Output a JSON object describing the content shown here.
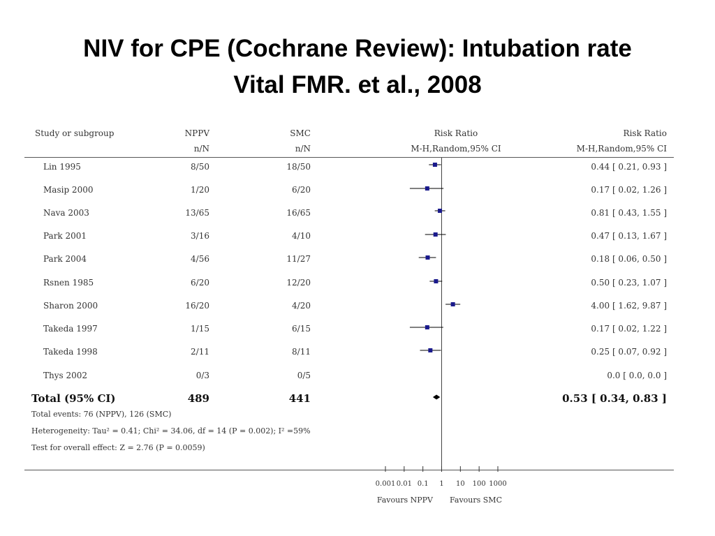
{
  "title": {
    "line1": "NIV for CPE  (Cochrane Review): Intubation rate",
    "line2": "Vital FMR. et al., 2008"
  },
  "header": {
    "study": "Study or subgroup",
    "nppv": "NPPV",
    "smc": "SMC",
    "nppv_sub": "n/N",
    "smc_sub": "n/N",
    "plot": "Risk Ratio",
    "plot_sub": "M-H,Random,95% CI",
    "ratio": "Risk Ratio",
    "ratio_sub": "M-H,Random,95% CI"
  },
  "rows": [
    {
      "study": "Lin 1995",
      "nppv": "8/50",
      "smc": "18/50",
      "ci_text": "0.44 [ 0.21, 0.93 ]"
    },
    {
      "study": "Masip 2000",
      "nppv": "1/20",
      "smc": "6/20",
      "ci_text": "0.17 [ 0.02, 1.26 ]"
    },
    {
      "study": "Nava 2003",
      "nppv": "13/65",
      "smc": "16/65",
      "ci_text": "0.81 [ 0.43, 1.55 ]"
    },
    {
      "study": "Park 2001",
      "nppv": "3/16",
      "smc": "4/10",
      "ci_text": "0.47 [ 0.13, 1.67 ]"
    },
    {
      "study": "Park 2004",
      "nppv": "4/56",
      "smc": "11/27",
      "ci_text": "0.18 [ 0.06, 0.50 ]"
    },
    {
      "study": "Rsnen 1985",
      "nppv": "6/20",
      "smc": "12/20",
      "ci_text": "0.50 [ 0.23, 1.07 ]"
    },
    {
      "study": "Sharon 2000",
      "nppv": "16/20",
      "smc": "4/20",
      "ci_text": "4.00 [ 1.62, 9.87 ]"
    },
    {
      "study": "Takeda 1997",
      "nppv": "1/15",
      "smc": "6/15",
      "ci_text": "0.17 [ 0.02, 1.22 ]"
    },
    {
      "study": "Takeda 1998",
      "nppv": "2/11",
      "smc": "8/11",
      "ci_text": "0.25 [ 0.07, 0.92 ]"
    },
    {
      "study": "Thys 2002",
      "nppv": "0/3",
      "smc": "0/5",
      "ci_text": "0.0 [ 0.0, 0.0 ]"
    }
  ],
  "total": {
    "label": "Total (95% CI)",
    "nppv": "489",
    "smc": "441",
    "ci_text": "0.53 [ 0.34, 0.83 ]"
  },
  "footnotes": {
    "events": "Total events: 76 (NPPV), 126 (SMC)",
    "heterogeneity": "Heterogeneity: Tau² = 0.41; Chi² = 34.06, df = 14 (P = 0.002); I² =59%",
    "overall": "Test for overall effect: Z = 2.76 (P = 0.0059)"
  },
  "axis_labels": {
    "favours_left": "Favours NPPV",
    "favours_right": "Favours SMC"
  },
  "colors": {
    "marker": "#1a1a8c",
    "line": "#000000"
  },
  "chart_data": {
    "type": "forest",
    "x_scale": "log",
    "xlim": [
      0.001,
      1000
    ],
    "xticks": [
      0.001,
      0.01,
      0.1,
      1,
      10,
      100,
      1000
    ],
    "xtick_labels": [
      "0.001",
      "0.01",
      "0.1",
      "1",
      "10",
      "100",
      "1000"
    ],
    "reference_line": 1,
    "studies": [
      {
        "name": "Lin 1995",
        "rr": 0.44,
        "lo": 0.21,
        "hi": 0.93
      },
      {
        "name": "Masip 2000",
        "rr": 0.17,
        "lo": 0.02,
        "hi": 1.26
      },
      {
        "name": "Nava 2003",
        "rr": 0.81,
        "lo": 0.43,
        "hi": 1.55
      },
      {
        "name": "Park 2001",
        "rr": 0.47,
        "lo": 0.13,
        "hi": 1.67
      },
      {
        "name": "Park 2004",
        "rr": 0.18,
        "lo": 0.06,
        "hi": 0.5
      },
      {
        "name": "Rsnen 1985",
        "rr": 0.5,
        "lo": 0.23,
        "hi": 1.07
      },
      {
        "name": "Sharon 2000",
        "rr": 4.0,
        "lo": 1.62,
        "hi": 9.87
      },
      {
        "name": "Takeda 1997",
        "rr": 0.17,
        "lo": 0.02,
        "hi": 1.22
      },
      {
        "name": "Takeda 1998",
        "rr": 0.25,
        "lo": 0.07,
        "hi": 0.92
      },
      {
        "name": "Thys 2002",
        "rr": null,
        "lo": null,
        "hi": null
      }
    ],
    "pooled": {
      "name": "Total (95% CI)",
      "rr": 0.53,
      "lo": 0.34,
      "hi": 0.83
    }
  }
}
